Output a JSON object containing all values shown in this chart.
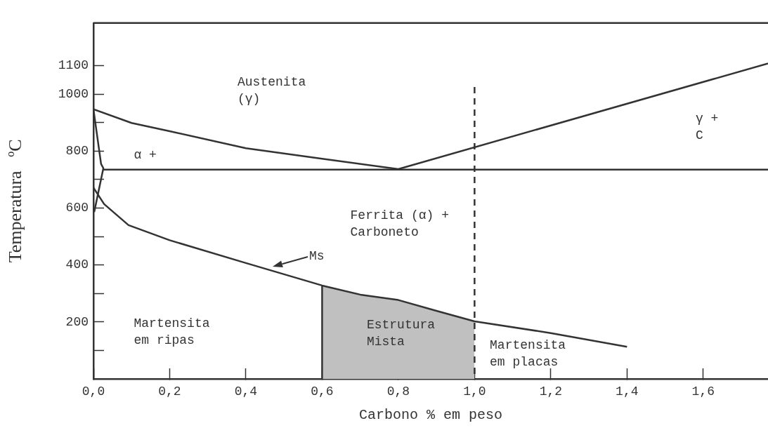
{
  "chart_data": {
    "type": "line",
    "xlabel": "Carbono % em peso",
    "ylabel": "Temperatura   ºC",
    "xlim": [
      0,
      1.77
    ],
    "ylim": [
      0,
      1250
    ],
    "xticks": [
      {
        "value": 0,
        "label": "0,0"
      },
      {
        "value": 0.2,
        "label": "0,2"
      },
      {
        "value": 0.4,
        "label": "0,4"
      },
      {
        "value": 0.6,
        "label": "0,6"
      },
      {
        "value": 0.8,
        "label": "0,8"
      },
      {
        "value": 1.0,
        "label": "1,0"
      },
      {
        "value": 1.2,
        "label": "1,2"
      },
      {
        "value": 1.4,
        "label": "1,4"
      },
      {
        "value": 1.6,
        "label": "1,6"
      }
    ],
    "yticks": [
      {
        "value": 100,
        "label": null
      },
      200,
      {
        "value": 300,
        "label": null
      },
      400,
      {
        "value": 500,
        "label": null
      },
      600,
      {
        "value": 700,
        "label": null
      },
      800,
      {
        "value": 900,
        "label": null
      },
      1000,
      1100
    ],
    "grid": false,
    "marker": "none",
    "line_style": "solid",
    "series": [
      {
        "type": "area",
        "color": "#c0c0c0",
        "x": [
          0.6,
          0.7,
          0.8,
          0.9,
          1.0
        ],
        "values": [
          328,
          296,
          277,
          239,
          202
        ]
      },
      {
        "color": "#333333",
        "x": [
          0.6,
          0.6
        ],
        "values": [
          0,
          328
        ]
      },
      {
        "color": "#333333",
        "x": [
          0,
          0.1,
          0.2,
          0.4,
          0.6,
          0.8,
          1.77
        ],
        "values": [
          947,
          899,
          870,
          810,
          773,
          737,
          1108
        ]
      },
      {
        "color": "#333333",
        "x": [
          0.026,
          1.77
        ],
        "values": [
          735,
          735
        ]
      },
      {
        "color": "#333333",
        "x": [
          0,
          0.02,
          0.026,
          0.002
        ],
        "values": [
          947,
          755,
          740,
          586
        ]
      },
      {
        "color": "#333333",
        "x": [
          0,
          0.028,
          0.092,
          0.2,
          0.4,
          0.6,
          0.7,
          0.8,
          0.9,
          1.0,
          1.2,
          1.4
        ],
        "values": [
          672,
          614,
          540,
          487,
          407,
          328,
          296,
          277,
          239,
          202,
          161,
          113
        ]
      },
      {
        "color": "#333333",
        "line_style": "dashed",
        "x": [
          1.0,
          1.0
        ],
        "values": [
          1025,
          0
        ]
      }
    ],
    "annotations": [
      "Austenita\n(γ)",
      "α +",
      "γ +\nC",
      "Ferrita (α) +\nCarboneto",
      {
        "text": "Ms",
        "x": 0.47,
        "y": 395
      },
      "Martensita\nem ripas",
      "Estrutura\nMista",
      "Martensita\nem placas"
    ]
  }
}
